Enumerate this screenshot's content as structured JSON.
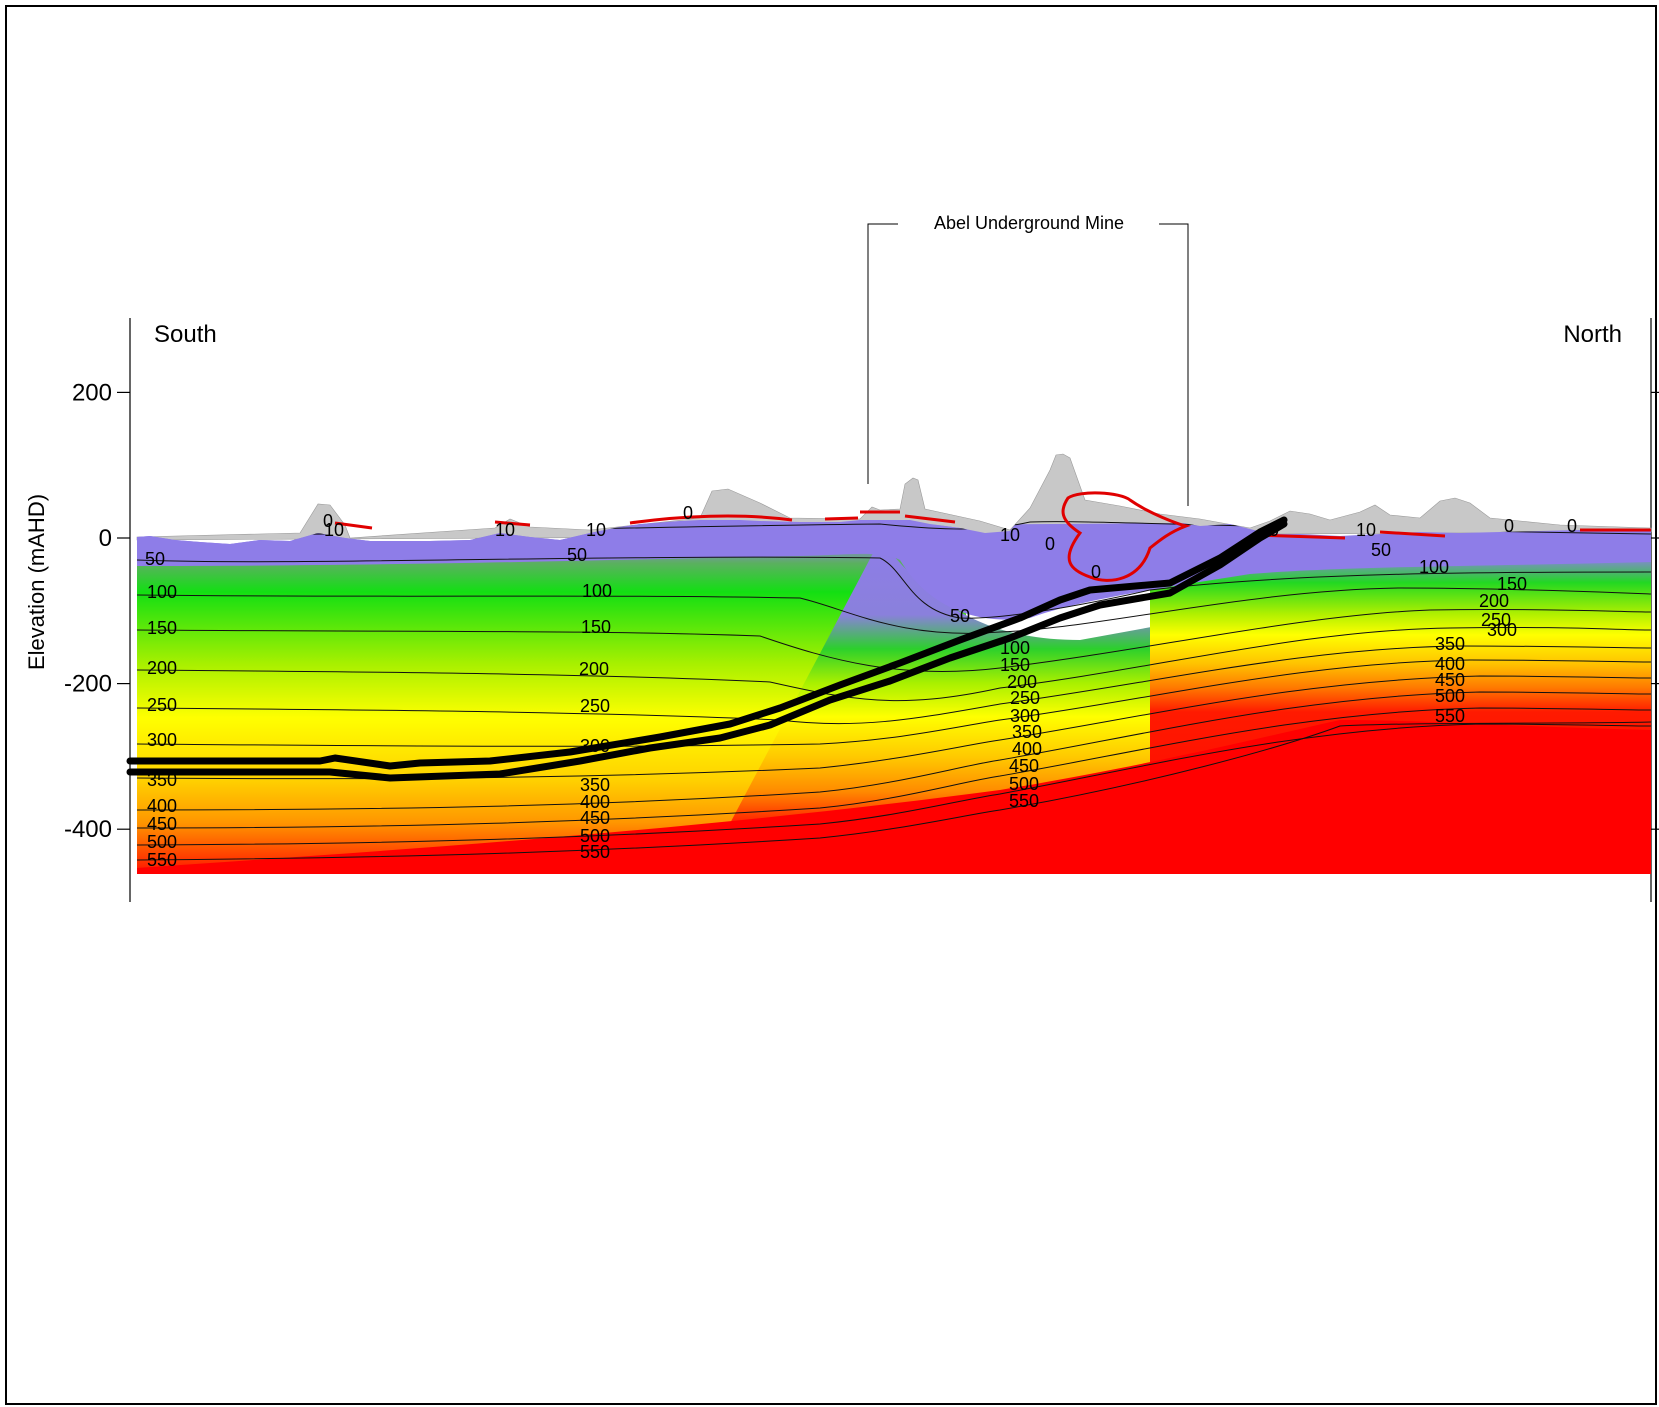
{
  "y_axis": {
    "label": "Elevation (mAHD)",
    "tick_labels": [
      "200",
      "0",
      "-200",
      "-400"
    ],
    "tick_values": [
      200,
      0,
      -200,
      -400
    ]
  },
  "direction_labels": {
    "left": "South",
    "right": "North"
  },
  "mine_annotation": "Abel Underground Mine",
  "contour_labels": [
    {
      "text": "0",
      "value": 0
    },
    {
      "text": "10",
      "value": 10
    },
    {
      "text": "10",
      "value": 10
    },
    {
      "text": "10",
      "value": 10
    },
    {
      "text": "0",
      "value": 0
    },
    {
      "text": "10",
      "value": 10
    },
    {
      "text": "0",
      "value": 0
    },
    {
      "text": "0",
      "value": 0
    },
    {
      "text": "0",
      "value": 0
    },
    {
      "text": "10",
      "value": 10
    },
    {
      "text": "0",
      "value": 0
    },
    {
      "text": "0",
      "value": 0
    },
    {
      "text": "50",
      "value": 50
    },
    {
      "text": "50",
      "value": 50
    },
    {
      "text": "50",
      "value": 50
    },
    {
      "text": "50",
      "value": 50
    },
    {
      "text": "100",
      "value": 100
    },
    {
      "text": "100",
      "value": 100
    },
    {
      "text": "100",
      "value": 100
    },
    {
      "text": "100",
      "value": 100
    },
    {
      "text": "150",
      "value": 150
    },
    {
      "text": "150",
      "value": 150
    },
    {
      "text": "150",
      "value": 150
    },
    {
      "text": "150",
      "value": 150
    },
    {
      "text": "200",
      "value": 200
    },
    {
      "text": "200",
      "value": 200
    },
    {
      "text": "200",
      "value": 200
    },
    {
      "text": "200",
      "value": 200
    },
    {
      "text": "250",
      "value": 250
    },
    {
      "text": "250",
      "value": 250
    },
    {
      "text": "250",
      "value": 250
    },
    {
      "text": "250",
      "value": 250
    },
    {
      "text": "300",
      "value": 300
    },
    {
      "text": "300",
      "value": 300
    },
    {
      "text": "300",
      "value": 300
    },
    {
      "text": "300",
      "value": 300
    },
    {
      "text": "350",
      "value": 350
    },
    {
      "text": "350",
      "value": 350
    },
    {
      "text": "350",
      "value": 350
    },
    {
      "text": "350",
      "value": 350
    },
    {
      "text": "400",
      "value": 400
    },
    {
      "text": "400",
      "value": 400
    },
    {
      "text": "400",
      "value": 400
    },
    {
      "text": "400",
      "value": 400
    },
    {
      "text": "450",
      "value": 450
    },
    {
      "text": "450",
      "value": 450
    },
    {
      "text": "450",
      "value": 450
    },
    {
      "text": "450",
      "value": 450
    },
    {
      "text": "500",
      "value": 500
    },
    {
      "text": "500",
      "value": 500
    },
    {
      "text": "500",
      "value": 500
    },
    {
      "text": "500",
      "value": 500
    },
    {
      "text": "550",
      "value": 550
    },
    {
      "text": "550",
      "value": 550
    },
    {
      "text": "550",
      "value": 550
    },
    {
      "text": "550",
      "value": 550
    }
  ],
  "colors": {
    "low_head": "#8f7ee6",
    "mid_green": "#14e014",
    "mid_yellow": "#ffff00",
    "mid_orange": "#ff9a00",
    "high_red": "#ff0000",
    "terrain": "#c8c8c8",
    "zero_contour": "#e00000",
    "seam": "#000000"
  }
}
